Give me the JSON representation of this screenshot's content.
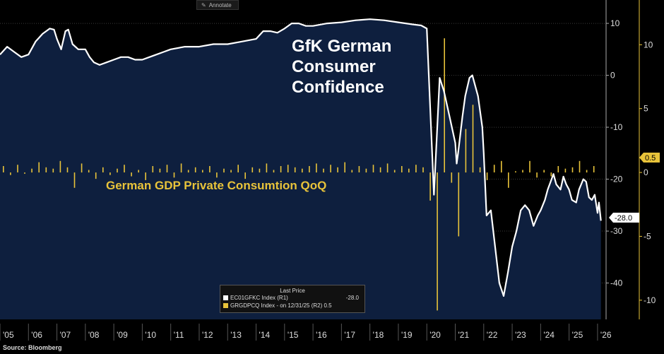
{
  "toolbar": {
    "annotate_label": "Annotate"
  },
  "source": "Source: Bloomberg",
  "legend": {
    "header": "Last Price",
    "items": [
      {
        "name": "EC01GFKC Index  (R1)",
        "value": "-28.0",
        "color": "#ffffff"
      },
      {
        "name": "GRGDPCQ Index - on 12/31/25  (R2) 0.5",
        "value": "",
        "color": "#e8c33a"
      }
    ]
  },
  "chart_data": {
    "type": "area",
    "title": "GfK German Consumer Confidence",
    "annotation": "German GDP Private Consumtion QoQ",
    "x_labels": [
      "'05",
      "'06",
      "'07",
      "'08",
      "'09",
      "'10",
      "'11",
      "'12",
      "'13",
      "'14",
      "'15",
      "'16",
      "'17",
      "'18",
      "'19",
      "'20",
      "'21",
      "'22",
      "'23",
      "'24",
      "'25",
      "'26"
    ],
    "x_range": [
      2005.0,
      2026.3
    ],
    "axes": {
      "r1": {
        "ticks": [
          10,
          0,
          -10,
          -20,
          -30,
          -40
        ],
        "range": [
          -47,
          14.5
        ],
        "last": "-28.0"
      },
      "r2": {
        "ticks": [
          10,
          5,
          0,
          -5,
          -10
        ],
        "range": [
          -11.5,
          13.5
        ],
        "last": "0.5"
      }
    },
    "series": [
      {
        "name": "EC01GFKC Index",
        "axis": "r1",
        "color": "#ffffff",
        "points": [
          [
            2005.0,
            4.0
          ],
          [
            2005.25,
            5.5
          ],
          [
            2005.5,
            4.5
          ],
          [
            2005.75,
            3.5
          ],
          [
            2006.0,
            4.0
          ],
          [
            2006.25,
            6.5
          ],
          [
            2006.5,
            8.0
          ],
          [
            2006.75,
            9.0
          ],
          [
            2006.9,
            8.8
          ],
          [
            2007.0,
            7.0
          ],
          [
            2007.15,
            5.0
          ],
          [
            2007.3,
            8.5
          ],
          [
            2007.4,
            8.8
          ],
          [
            2007.55,
            6.0
          ],
          [
            2007.75,
            5.0
          ],
          [
            2008.0,
            5.0
          ],
          [
            2008.15,
            3.5
          ],
          [
            2008.3,
            2.5
          ],
          [
            2008.5,
            2.0
          ],
          [
            2008.75,
            2.5
          ],
          [
            2009.0,
            3.0
          ],
          [
            2009.25,
            3.5
          ],
          [
            2009.5,
            3.5
          ],
          [
            2009.75,
            3.0
          ],
          [
            2010.0,
            3.0
          ],
          [
            2010.25,
            3.5
          ],
          [
            2010.5,
            4.0
          ],
          [
            2010.75,
            4.5
          ],
          [
            2011.0,
            5.0
          ],
          [
            2011.5,
            5.5
          ],
          [
            2012.0,
            5.5
          ],
          [
            2012.5,
            6.0
          ],
          [
            2013.0,
            6.0
          ],
          [
            2013.5,
            6.5
          ],
          [
            2014.0,
            7.0
          ],
          [
            2014.25,
            8.5
          ],
          [
            2014.5,
            8.5
          ],
          [
            2014.75,
            8.2
          ],
          [
            2015.0,
            9.0
          ],
          [
            2015.25,
            10.0
          ],
          [
            2015.5,
            10.0
          ],
          [
            2015.75,
            9.5
          ],
          [
            2016.0,
            9.5
          ],
          [
            2016.5,
            10.0
          ],
          [
            2017.0,
            10.2
          ],
          [
            2017.5,
            10.6
          ],
          [
            2018.0,
            10.8
          ],
          [
            2018.5,
            10.6
          ],
          [
            2019.0,
            10.2
          ],
          [
            2019.5,
            9.8
          ],
          [
            2019.8,
            9.6
          ],
          [
            2020.0,
            9.0
          ],
          [
            2020.1,
            -4.0
          ],
          [
            2020.25,
            -23.0
          ],
          [
            2020.35,
            -12.0
          ],
          [
            2020.45,
            -0.5
          ],
          [
            2020.6,
            -3.0
          ],
          [
            2020.8,
            -8.0
          ],
          [
            2021.0,
            -13.0
          ],
          [
            2021.05,
            -17.0
          ],
          [
            2021.1,
            -15.0
          ],
          [
            2021.25,
            -8.0
          ],
          [
            2021.35,
            -4.0
          ],
          [
            2021.5,
            -0.5
          ],
          [
            2021.6,
            0.0
          ],
          [
            2021.7,
            -2.0
          ],
          [
            2021.8,
            -4.0
          ],
          [
            2021.95,
            -10.0
          ],
          [
            2022.0,
            -15.0
          ],
          [
            2022.1,
            -27.0
          ],
          [
            2022.25,
            -26.0
          ],
          [
            2022.4,
            -33.0
          ],
          [
            2022.55,
            -40.0
          ],
          [
            2022.7,
            -42.5
          ],
          [
            2022.85,
            -38.0
          ],
          [
            2023.0,
            -33.0
          ],
          [
            2023.15,
            -30.0
          ],
          [
            2023.3,
            -26.0
          ],
          [
            2023.45,
            -25.0
          ],
          [
            2023.6,
            -26.0
          ],
          [
            2023.75,
            -29.0
          ],
          [
            2023.9,
            -27.0
          ],
          [
            2024.0,
            -26.0
          ],
          [
            2024.15,
            -24.0
          ],
          [
            2024.25,
            -22.0
          ],
          [
            2024.35,
            -20.5
          ],
          [
            2024.45,
            -19.0
          ],
          [
            2024.55,
            -21.0
          ],
          [
            2024.7,
            -22.0
          ],
          [
            2024.8,
            -19.5
          ],
          [
            2024.9,
            -21.0
          ],
          [
            2025.0,
            -22.0
          ],
          [
            2025.1,
            -24.0
          ],
          [
            2025.25,
            -24.5
          ],
          [
            2025.35,
            -22.0
          ],
          [
            2025.5,
            -20.0
          ],
          [
            2025.6,
            -20.5
          ],
          [
            2025.7,
            -23.5
          ],
          [
            2025.8,
            -24.0
          ],
          [
            2025.9,
            -23.0
          ],
          [
            2026.0,
            -26.5
          ],
          [
            2026.05,
            -24.5
          ],
          [
            2026.12,
            -28.0
          ]
        ]
      },
      {
        "name": "GRGDPCQ Index",
        "axis": "r2",
        "type": "bar",
        "color": "#e8c33a",
        "values": [
          [
            2005.0,
            0.5
          ],
          [
            2005.25,
            -0.2
          ],
          [
            2005.5,
            0.6
          ],
          [
            2005.75,
            -0.1
          ],
          [
            2006.0,
            0.3
          ],
          [
            2006.25,
            0.8
          ],
          [
            2006.5,
            0.4
          ],
          [
            2006.75,
            0.3
          ],
          [
            2007.0,
            0.9
          ],
          [
            2007.25,
            0.4
          ],
          [
            2007.5,
            -1.2
          ],
          [
            2007.75,
            0.7
          ],
          [
            2008.0,
            0.2
          ],
          [
            2008.25,
            -0.5
          ],
          [
            2008.5,
            0.4
          ],
          [
            2008.75,
            -0.2
          ],
          [
            2009.0,
            0.3
          ],
          [
            2009.25,
            0.6
          ],
          [
            2009.5,
            -0.3
          ],
          [
            2009.75,
            0.2
          ],
          [
            2010.0,
            -0.6
          ],
          [
            2010.25,
            0.5
          ],
          [
            2010.5,
            0.3
          ],
          [
            2010.75,
            0.6
          ],
          [
            2011.0,
            -0.4
          ],
          [
            2011.25,
            0.7
          ],
          [
            2011.5,
            0.2
          ],
          [
            2011.75,
            0.4
          ],
          [
            2012.0,
            0.2
          ],
          [
            2012.25,
            0.5
          ],
          [
            2012.5,
            -0.4
          ],
          [
            2012.75,
            0.3
          ],
          [
            2013.0,
            0.2
          ],
          [
            2013.25,
            0.6
          ],
          [
            2013.5,
            -0.5
          ],
          [
            2013.75,
            0.4
          ],
          [
            2014.0,
            0.3
          ],
          [
            2014.25,
            0.7
          ],
          [
            2014.5,
            0.2
          ],
          [
            2014.75,
            0.5
          ],
          [
            2015.0,
            0.6
          ],
          [
            2015.25,
            0.4
          ],
          [
            2015.5,
            0.3
          ],
          [
            2015.75,
            0.5
          ],
          [
            2016.0,
            0.7
          ],
          [
            2016.25,
            0.3
          ],
          [
            2016.5,
            0.6
          ],
          [
            2016.75,
            0.4
          ],
          [
            2017.0,
            0.8
          ],
          [
            2017.25,
            0.2
          ],
          [
            2017.5,
            0.5
          ],
          [
            2017.75,
            0.3
          ],
          [
            2018.0,
            0.6
          ],
          [
            2018.25,
            0.4
          ],
          [
            2018.5,
            0.7
          ],
          [
            2018.75,
            0.2
          ],
          [
            2019.0,
            0.5
          ],
          [
            2019.25,
            0.3
          ],
          [
            2019.5,
            0.6
          ],
          [
            2019.75,
            0.4
          ],
          [
            2020.0,
            -2.2
          ],
          [
            2020.25,
            -10.8
          ],
          [
            2020.5,
            10.5
          ],
          [
            2020.75,
            -0.8
          ],
          [
            2021.0,
            -5.0
          ],
          [
            2021.25,
            3.4
          ],
          [
            2021.5,
            5.3
          ],
          [
            2021.75,
            0.4
          ],
          [
            2022.0,
            -0.6
          ],
          [
            2022.25,
            0.6
          ],
          [
            2022.5,
            0.9
          ],
          [
            2022.75,
            -1.2
          ],
          [
            2023.0,
            0.1
          ],
          [
            2023.25,
            0.2
          ],
          [
            2023.5,
            0.9
          ],
          [
            2023.75,
            -0.4
          ],
          [
            2024.0,
            0.2
          ],
          [
            2024.25,
            -0.3
          ],
          [
            2024.5,
            0.5
          ],
          [
            2024.75,
            0.3
          ],
          [
            2025.0,
            0.4
          ],
          [
            2025.25,
            0.9
          ],
          [
            2025.5,
            0.2
          ],
          [
            2025.75,
            0.5
          ]
        ]
      }
    ]
  }
}
